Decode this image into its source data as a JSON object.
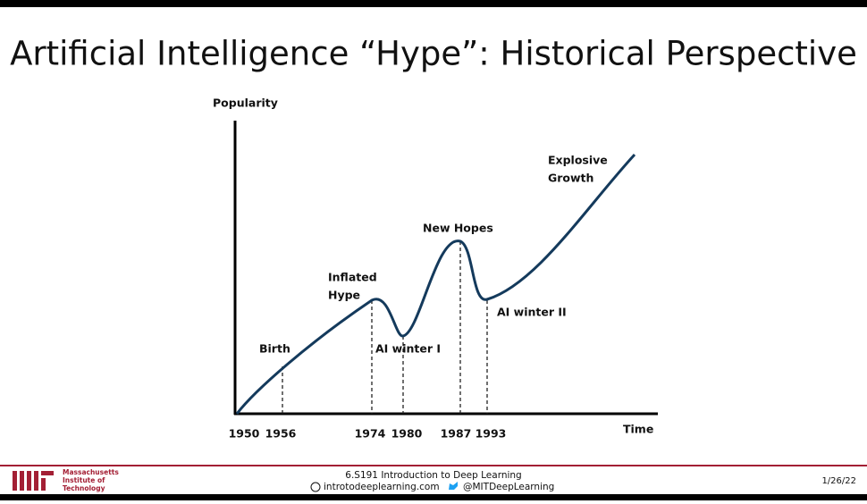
{
  "slide": {
    "title": "Artificial Intelligence “Hype”: Historical Perspective"
  },
  "chart": {
    "y_label": "Popularity",
    "x_label": "Time",
    "ticks": [
      "1950",
      "1956",
      "1974",
      "1980",
      "1987",
      "1993"
    ],
    "annotations": [
      "Birth",
      "Inflated",
      "Hype",
      "AI winter I",
      "New Hopes",
      "AI winter II",
      "Explosive",
      "Growth"
    ]
  },
  "footer": {
    "logo": [
      "Massachusetts",
      "Institute of",
      "Technology"
    ],
    "course": "6.S191 Introduction to Deep Learning",
    "website": "introtodeeplearning.com",
    "twitter": "@MITDeepLearning",
    "date": "1/26/22"
  }
}
